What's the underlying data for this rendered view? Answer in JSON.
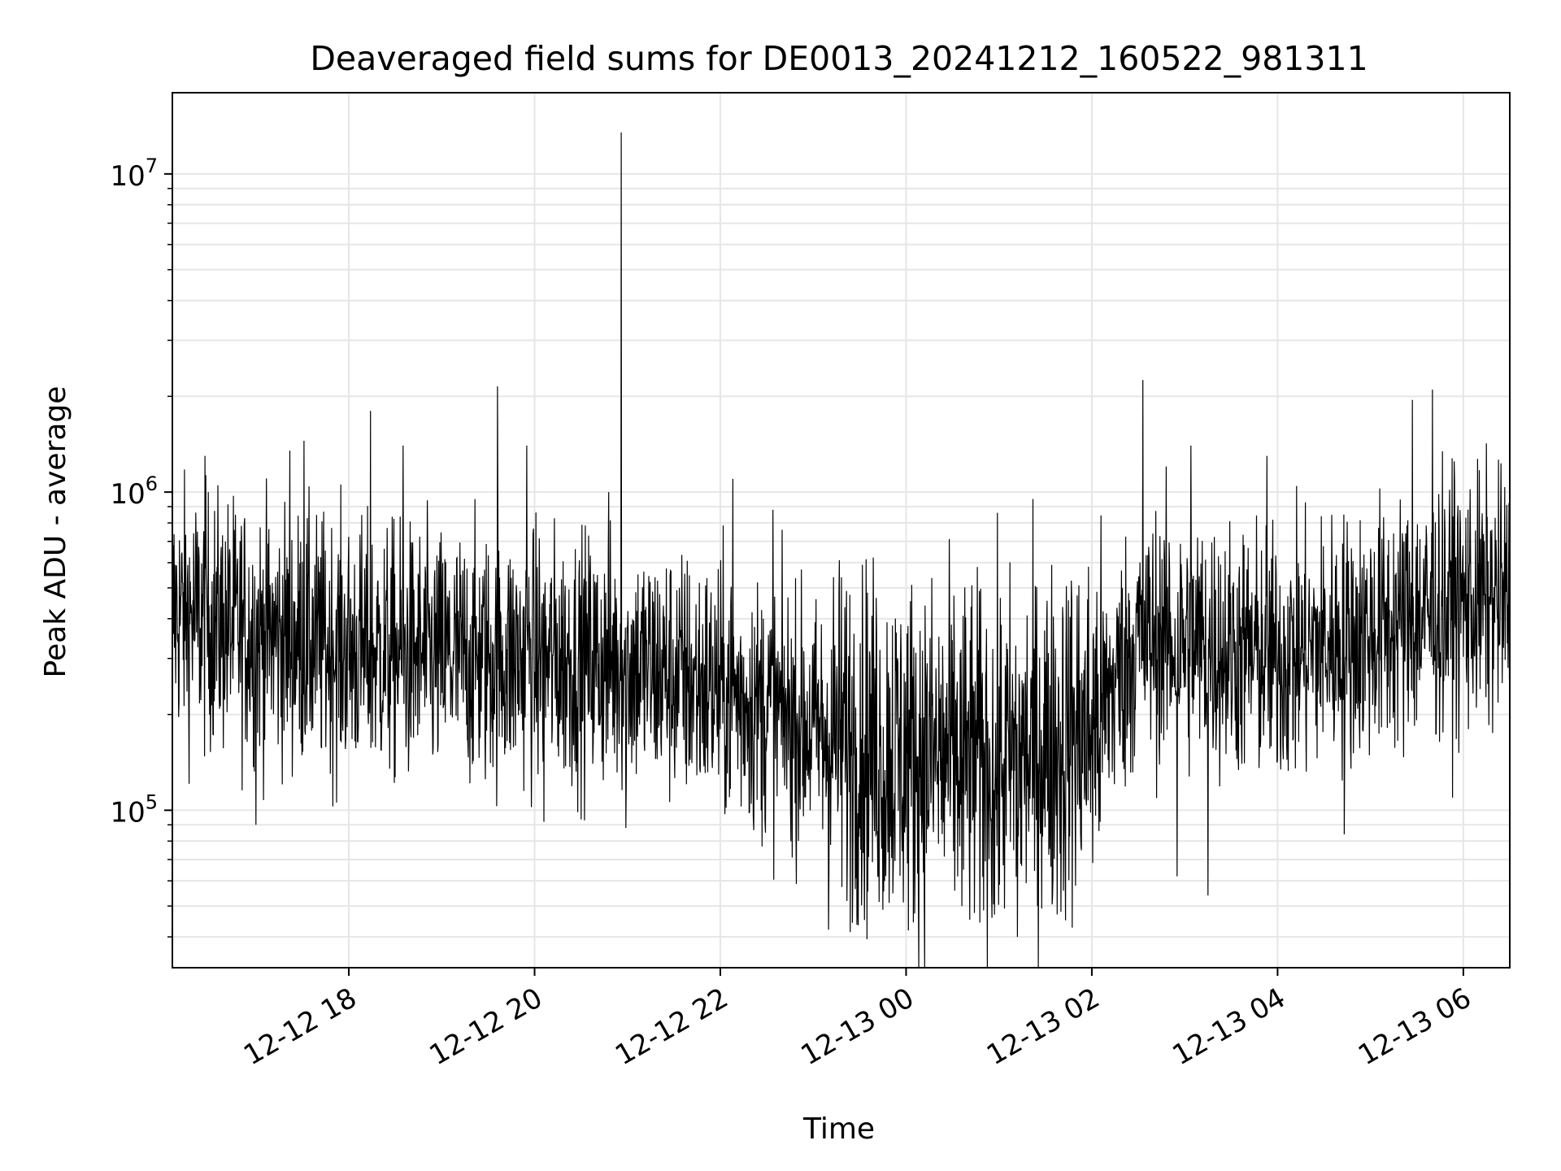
{
  "chart_data": {
    "type": "line",
    "title": "Deaveraged field sums for DE0013_20241212_160522_981311",
    "xlabel": "Time",
    "ylabel": "Peak ADU - average",
    "yscale": "log",
    "xlim": [
      "2024-12-12 16:06",
      "2024-12-13 06:30"
    ],
    "ylim": [
      32000,
      18000000
    ],
    "x_ticks": [
      {
        "value": "2024-12-12 18:00",
        "label": "12-12 18"
      },
      {
        "value": "2024-12-12 20:00",
        "label": "12-12 20"
      },
      {
        "value": "2024-12-12 22:00",
        "label": "12-12 22"
      },
      {
        "value": "2024-12-13 00:00",
        "label": "12-13 00"
      },
      {
        "value": "2024-12-13 02:00",
        "label": "12-13 02"
      },
      {
        "value": "2024-12-13 04:00",
        "label": "12-13 04"
      },
      {
        "value": "2024-12-13 06:00",
        "label": "12-13 06"
      }
    ],
    "y_ticks": [
      {
        "value": 100000,
        "base": "10",
        "exp": "5"
      },
      {
        "value": 1000000,
        "base": "10",
        "exp": "6"
      },
      {
        "value": 10000000,
        "base": "10",
        "exp": "7"
      }
    ],
    "grid": true,
    "line_color": "#000000",
    "grid_color": "#e6e6e6",
    "series": [
      {
        "baseline": [
          [
            "2024-12-12 16:06",
            420000
          ],
          [
            "2024-12-12 17:00",
            360000
          ],
          [
            "2024-12-12 18:00",
            320000
          ],
          [
            "2024-12-12 19:00",
            300000
          ],
          [
            "2024-12-12 20:00",
            300000
          ],
          [
            "2024-12-12 21:00",
            290000
          ],
          [
            "2024-12-12 22:00",
            240000
          ],
          [
            "2024-12-12 23:00",
            180000
          ],
          [
            "2024-12-13 00:00",
            150000
          ],
          [
            "2024-12-13 01:00",
            140000
          ],
          [
            "2024-12-13 02:00",
            180000
          ],
          [
            "2024-12-13 02:30",
            350000
          ],
          [
            "2024-12-13 03:00",
            340000
          ],
          [
            "2024-12-13 04:00",
            300000
          ],
          [
            "2024-12-13 05:00",
            360000
          ],
          [
            "2024-12-13 06:00",
            450000
          ],
          [
            "2024-12-13 06:30",
            460000
          ]
        ],
        "spikes": [
          [
            "2024-12-12 16:27",
            1300000
          ],
          [
            "2024-12-12 17:22",
            1350000
          ],
          [
            "2024-12-12 17:31",
            1450000
          ],
          [
            "2024-12-12 18:14",
            1800000
          ],
          [
            "2024-12-12 18:35",
            1400000
          ],
          [
            "2024-12-12 19:36",
            2150000
          ],
          [
            "2024-12-12 19:55",
            1400000
          ],
          [
            "2024-12-12 20:56",
            13500000
          ],
          [
            "2024-12-12 20:48",
            1000000
          ],
          [
            "2024-12-12 22:08",
            1100000
          ],
          [
            "2024-12-12 22:34",
            880000
          ],
          [
            "2024-12-13 02:33",
            2250000
          ],
          [
            "2024-12-13 03:04",
            1400000
          ],
          [
            "2024-12-13 03:53",
            1300000
          ],
          [
            "2024-12-13 05:27",
            1950000
          ],
          [
            "2024-12-13 05:40",
            2100000
          ],
          [
            "2024-12-13 05:54",
            1250000
          ],
          [
            "2024-12-12 17:00",
            90000
          ],
          [
            "2024-12-12 20:06",
            92000
          ],
          [
            "2024-12-12 20:59",
            88000
          ],
          [
            "2024-12-12 23:46",
            60000
          ],
          [
            "2024-12-13 00:36",
            50000
          ],
          [
            "2024-12-13 00:57",
            47000
          ],
          [
            "2024-12-13 01:12",
            40000
          ],
          [
            "2024-12-13 01:25",
            50000
          ],
          [
            "2024-12-13 01:40",
            48000
          ],
          [
            "2024-12-13 02:55",
            62000
          ],
          [
            "2024-12-13 03:15",
            54000
          ],
          [
            "2024-12-13 04:43",
            84000
          ]
        ]
      }
    ]
  }
}
